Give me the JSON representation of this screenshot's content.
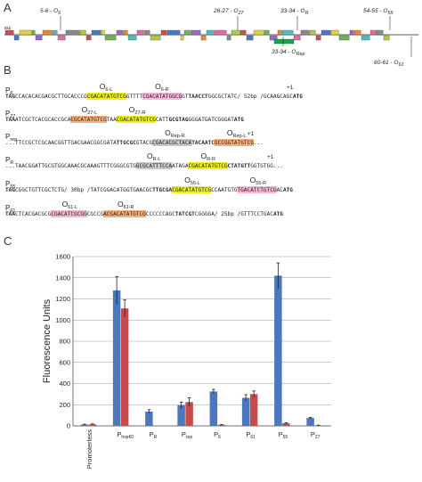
{
  "panels": {
    "a": "A",
    "b": "B",
    "c": "C"
  },
  "genome_map": {
    "top_labels": [
      {
        "prefix": "5-6 - O",
        "sub": "6"
      },
      {
        "prefix": "26-27 - O",
        "sub": "27"
      },
      {
        "prefix": "33-34 - O",
        "sub": "R"
      },
      {
        "prefix": "54-55 - O",
        "sub": "55"
      }
    ],
    "bottom_labels": [
      {
        "prefix": "33-34 - O",
        "sub": "Rep"
      },
      {
        "prefix": "60-61 - O",
        "sub": "61"
      }
    ],
    "scale_label": "8kb"
  },
  "colors": {
    "yellow_box": "#f0f01e",
    "pink_box": "#f6b8d6",
    "orange_box": "#f7b07c",
    "gray_box": "#c9c9c9",
    "green_text": "#1aa24a",
    "red_text": "#e03030",
    "blue_text": "#1a8fd8",
    "bar_blue": "#4a78c0",
    "bar_red": "#c84a4a"
  },
  "sequences": [
    {
      "name": "P",
      "sub": "6",
      "operators": [
        {
          "label": "O",
          "sub": "6-L"
        },
        {
          "label": "O",
          "sub": "6-R"
        }
      ],
      "plus_one": "+1",
      "segments": [
        {
          "t": "TAG",
          "c": "red"
        },
        {
          "t": "CCACACACGACGCTTGCACCCG",
          "c": "plain"
        },
        {
          "t": "CGACATATGTCG",
          "c": "plain",
          "box": "yellow"
        },
        {
          "t": "GTTTT",
          "c": "plain"
        },
        {
          "t": "CGACATATGGCG",
          "c": "plain",
          "box": "pink"
        },
        {
          "t": "GT",
          "c": "plain"
        },
        {
          "t": "TAACCT",
          "c": "green"
        },
        {
          "t": "GGCGCTATC/ 52bp /GCAAGCAGC",
          "c": "plain"
        },
        {
          "t": "ATG",
          "c": "blue"
        }
      ]
    },
    {
      "name": "P",
      "sub": "27",
      "operators": [
        {
          "label": "O",
          "sub": "27-L"
        },
        {
          "label": "O",
          "sub": "27-R"
        }
      ],
      "plus_one": "",
      "segments": [
        {
          "t": "TAA",
          "c": "red"
        },
        {
          "t": "ATCGCTCACGCACCGCA",
          "c": "plain"
        },
        {
          "t": "CGCATATGTCG",
          "c": "plain",
          "box": "orange"
        },
        {
          "t": "TAA",
          "c": "plain"
        },
        {
          "t": "CGACATATGTCG",
          "c": "plain",
          "box": "yellow"
        },
        {
          "t": "CATT",
          "c": "plain"
        },
        {
          "t": "GCGTAG",
          "c": "green"
        },
        {
          "t": "GGGATGATCGGGAT",
          "c": "plain"
        },
        {
          "t": "ATG",
          "c": "blue"
        }
      ]
    },
    {
      "name": "P",
      "sub": "rep",
      "operators": [
        {
          "label": "O",
          "sub": "Rep-R"
        },
        {
          "label": "O",
          "sub": "Rep-L"
        }
      ],
      "plus_one": "+1",
      "segments": [
        {
          "t": "...TTCCGCTCGCAACGGTTGACGAACGGCGATA",
          "c": "plain"
        },
        {
          "t": "TTGCGC",
          "c": "green"
        },
        {
          "t": "GTACG",
          "c": "plain"
        },
        {
          "t": "CGACACGCTACA",
          "c": "plain",
          "box": "gray"
        },
        {
          "t": "TACAATC",
          "c": "green"
        },
        {
          "t": "GCCGGTATGTCG",
          "c": "plain",
          "box": "orange"
        },
        {
          "t": "...",
          "c": "plain"
        }
      ]
    },
    {
      "name": "P",
      "sub": "R",
      "operators": [
        {
          "label": "O",
          "sub": "R-L"
        },
        {
          "label": "O",
          "sub": "R-R"
        }
      ],
      "plus_one": "+1",
      "segments": [
        {
          "t": "...TAACGGATTGCGTGGCAAACGCAAAGTTTCGGGCGTG",
          "c": "plain"
        },
        {
          "t": "GCGCATTTCCA",
          "c": "plain",
          "box": "gray"
        },
        {
          "t": "ATAGA",
          "c": "plain"
        },
        {
          "t": "CGACATATGTCG",
          "c": "plain",
          "box": "yellow"
        },
        {
          "t": "CTATGTT",
          "c": "green"
        },
        {
          "t": "GGTGTGG",
          "c": "plain"
        },
        {
          "t": "...",
          "c": "plain"
        }
      ]
    },
    {
      "name": "P",
      "sub": "55",
      "operators": [
        {
          "label": "O",
          "sub": "55-L"
        },
        {
          "label": "O",
          "sub": "55-R"
        }
      ],
      "plus_one": "",
      "segments": [
        {
          "t": "TAG",
          "c": "red"
        },
        {
          "t": "CGGCTGTTCGCTCTG/ 30bp /TATCGGACATGGTGAACGC",
          "c": "plain"
        },
        {
          "t": "TTGCGA",
          "c": "green"
        },
        {
          "t": "CGACATATGTCG",
          "c": "plain",
          "box": "yellow"
        },
        {
          "t": "CCAATGTG",
          "c": "plain"
        },
        {
          "t": "TGACATCTGTCG",
          "c": "plain",
          "box": "pink"
        },
        {
          "t": "AC",
          "c": "plain"
        },
        {
          "t": "ATG",
          "c": "blue"
        }
      ]
    },
    {
      "name": "P",
      "sub": "61",
      "operators": [
        {
          "label": "O",
          "sub": "61-L"
        },
        {
          "label": "O",
          "sub": "61-R"
        }
      ],
      "plus_one": "",
      "segments": [
        {
          "t": "TAA",
          "c": "red"
        },
        {
          "t": "CTCACGACGCG",
          "c": "plain"
        },
        {
          "t": "CGACATCGCGG",
          "c": "plain",
          "box": "pink"
        },
        {
          "t": "CGCCG",
          "c": "plain"
        },
        {
          "t": "ACGACATATGTCG",
          "c": "plain",
          "box": "orange"
        },
        {
          "t": "CCCCCCAGC",
          "c": "plain"
        },
        {
          "t": "TATCGT",
          "c": "green"
        },
        {
          "t": "CGGGGA/ 25bp /GTTTCCTGAC",
          "c": "plain"
        },
        {
          "t": "ATG",
          "c": "blue"
        }
      ]
    }
  ],
  "chart_data": {
    "type": "bar",
    "ylabel": "Fluorescence Units",
    "ylim": [
      0,
      1600
    ],
    "yticks": [
      0,
      200,
      400,
      600,
      800,
      1000,
      1200,
      1400,
      1600
    ],
    "grid": true,
    "categories": [
      {
        "name": "Promoterless",
        "sub": ""
      },
      {
        "name": "P",
        "sub": "hsp60"
      },
      {
        "name": "P",
        "sub": "R"
      },
      {
        "name": "P",
        "sub": "rep"
      },
      {
        "name": "P",
        "sub": "6"
      },
      {
        "name": "P",
        "sub": "61"
      },
      {
        "name": "P",
        "sub": "55"
      },
      {
        "name": "P",
        "sub": "27"
      }
    ],
    "series": [
      {
        "color": "#4a78c0",
        "values": [
          12,
          1280,
          135,
          195,
          325,
          265,
          1420,
          75
        ],
        "errors": [
          4,
          130,
          18,
          30,
          20,
          30,
          120,
          6
        ]
      },
      {
        "color": "#c84a4a",
        "values": [
          15,
          1110,
          null,
          225,
          10,
          300,
          25,
          5
        ],
        "errors": [
          4,
          80,
          null,
          40,
          3,
          30,
          5,
          2
        ]
      }
    ]
  }
}
